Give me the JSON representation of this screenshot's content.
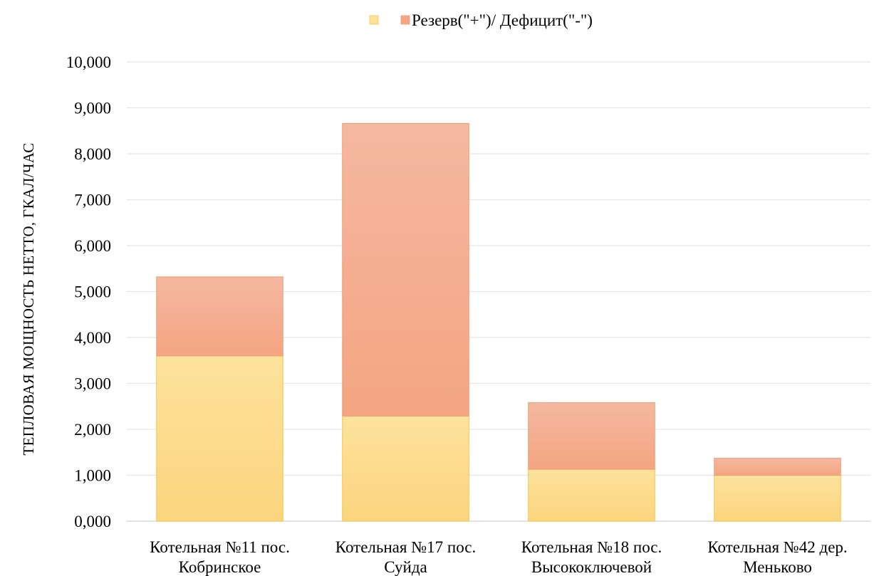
{
  "chart_data": {
    "type": "bar",
    "stacked": true,
    "title": "",
    "xlabel": "",
    "ylabel": "ТЕПЛОВАЯ МОЩНОСТЬ НЕТТО, ГКАЛ/ЧАС",
    "ylim": [
      0,
      10
    ],
    "ytick_step": 1,
    "yticks": [
      "0,000",
      "1,000",
      "2,000",
      "3,000",
      "4,000",
      "5,000",
      "6,000",
      "7,000",
      "8,000",
      "9,000",
      "10,000"
    ],
    "grid": true,
    "legend_position": "top",
    "categories": [
      [
        "Котельная №11 пос.",
        "Кобринское"
      ],
      [
        "Котельная №17 пос.",
        "Суйда"
      ],
      [
        "Котельная №18 пос.",
        "Высокоключевой"
      ],
      [
        "Котельная №42 дер.",
        "Меньково"
      ]
    ],
    "series": [
      {
        "name": "",
        "values": [
          3.6,
          2.29,
          1.13,
          1.0
        ],
        "color_top": "#fde29d",
        "color_bottom": "#fcd57e",
        "stroke": "#f5c542"
      },
      {
        "name": "Резерв(\"+\")/ Дефицит(\"-\")",
        "values": [
          1.72,
          6.37,
          1.45,
          0.37
        ],
        "color_top": "#f5b8a0",
        "color_bottom": "#f4a582",
        "stroke": "#f09a70"
      }
    ]
  }
}
